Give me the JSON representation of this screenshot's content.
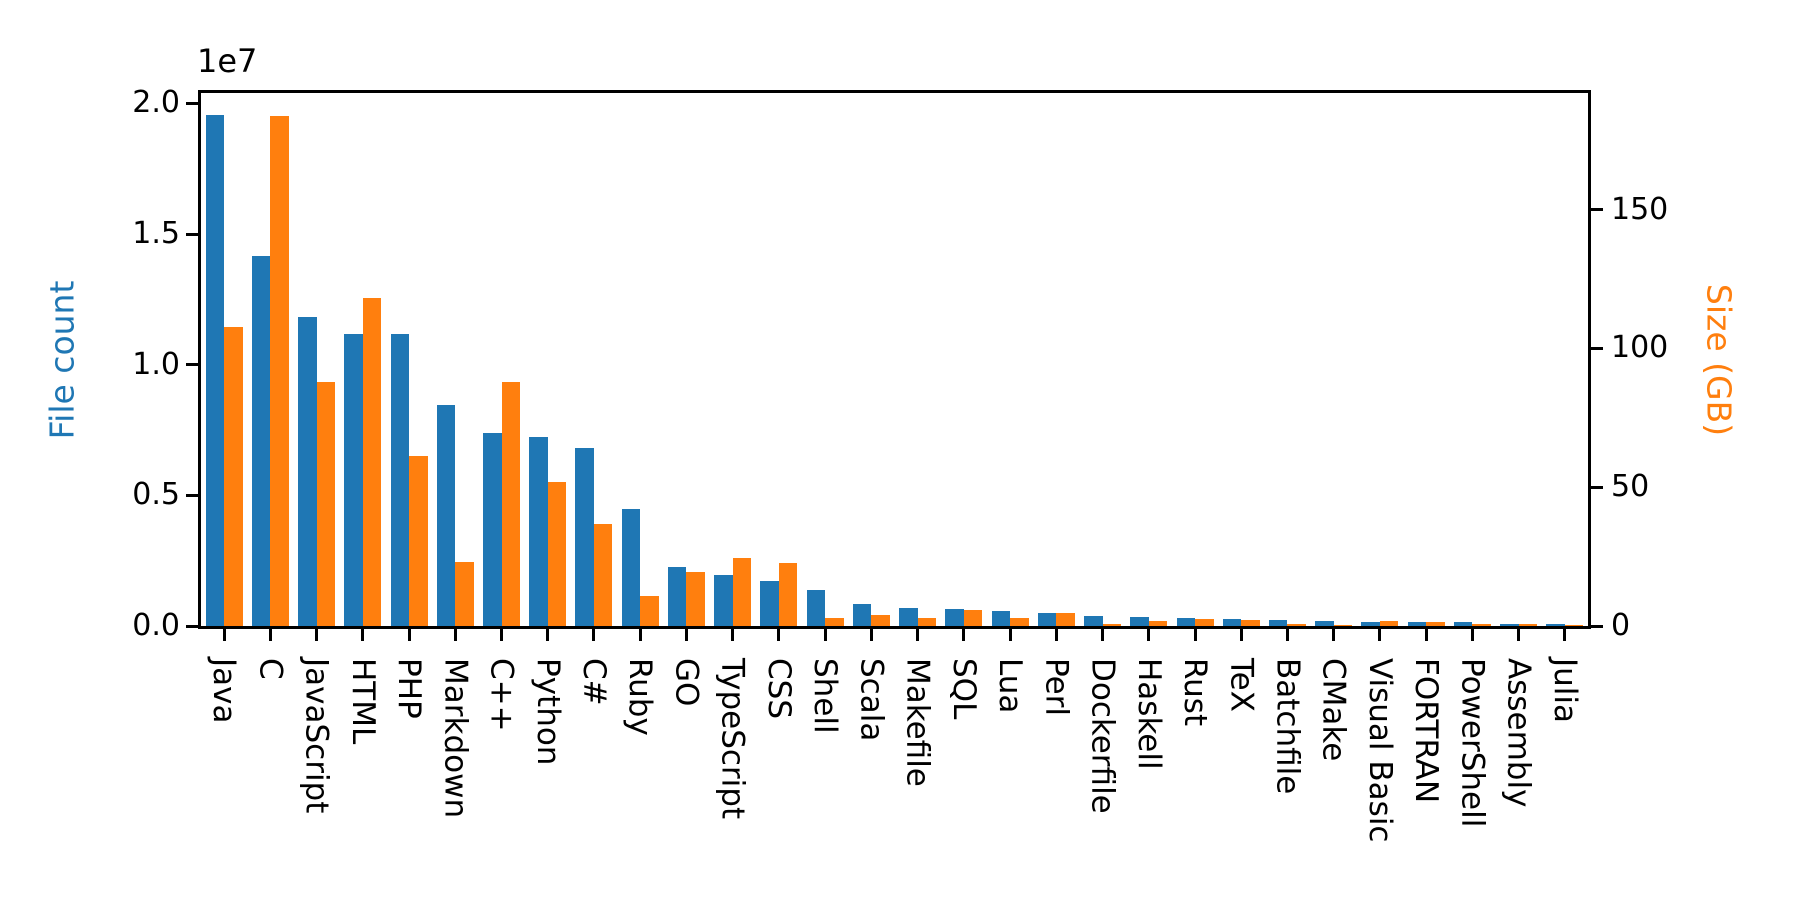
{
  "figure": {
    "background": "#ffffff",
    "blue": "#1f77b4",
    "orange": "#ff7f0e"
  },
  "chart_data": {
    "type": "bar",
    "title": "",
    "grid": false,
    "legend_position": "none",
    "categories": [
      "Java",
      "C",
      "JavaScript",
      "HTML",
      "PHP",
      "Markdown",
      "C++",
      "Python",
      "C#",
      "Ruby",
      "GO",
      "TypeScript",
      "CSS",
      "Shell",
      "Scala",
      "Makefile",
      "SQL",
      "Lua",
      "Perl",
      "Dockerfile",
      "Haskell",
      "Rust",
      "TeX",
      "Batchfile",
      "CMake",
      "Visual Basic",
      "FORTRAN",
      "PowerShell",
      "Assembly",
      "Julia"
    ],
    "series": [
      {
        "name": "File count",
        "axis": "left",
        "color": "#1f77b4",
        "values": [
          19548190,
          14143113,
          11839883,
          11178557,
          11177610,
          8464626,
          7380520,
          7226626,
          6811652,
          4473331,
          2265436,
          1940406,
          1734406,
          1385648,
          835755,
          679430,
          656671,
          578554,
          497949,
          366505,
          340057,
          322431,
          251015,
          236945,
          175282,
          155652,
          142038,
          136846,
          82905,
          58317
        ]
      },
      {
        "name": "Size (GB)",
        "axis": "right",
        "color": "#ff7f0e",
        "values": [
          107.7,
          183.83,
          87.82,
          118.12,
          61.41,
          23.09,
          87.73,
          52.03,
          36.83,
          10.95,
          19.28,
          24.59,
          22.67,
          3.01,
          3.87,
          2.92,
          5.67,
          2.81,
          4.7,
          0.71,
          1.85,
          2.68,
          2.15,
          0.7,
          0.54,
          1.91,
          1.62,
          0.69,
          0.78,
          0.29
        ]
      }
    ],
    "left_axis": {
      "label": "File count",
      "offset_text": "1e7",
      "color": "#1f77b4",
      "max": 20400000,
      "ticks": [
        {
          "v": 0,
          "t": "0.0"
        },
        {
          "v": 5000000,
          "t": "0.5"
        },
        {
          "v": 10000000,
          "t": "1.0"
        },
        {
          "v": 15000000,
          "t": "1.5"
        },
        {
          "v": 20000000,
          "t": "2.0"
        }
      ]
    },
    "right_axis": {
      "label": "Size (GB)",
      "color": "#ff7f0e",
      "max": 192,
      "ticks": [
        {
          "v": 0,
          "t": "0"
        },
        {
          "v": 50,
          "t": "50"
        },
        {
          "v": 100,
          "t": "100"
        },
        {
          "v": 150,
          "t": "150"
        }
      ]
    }
  }
}
